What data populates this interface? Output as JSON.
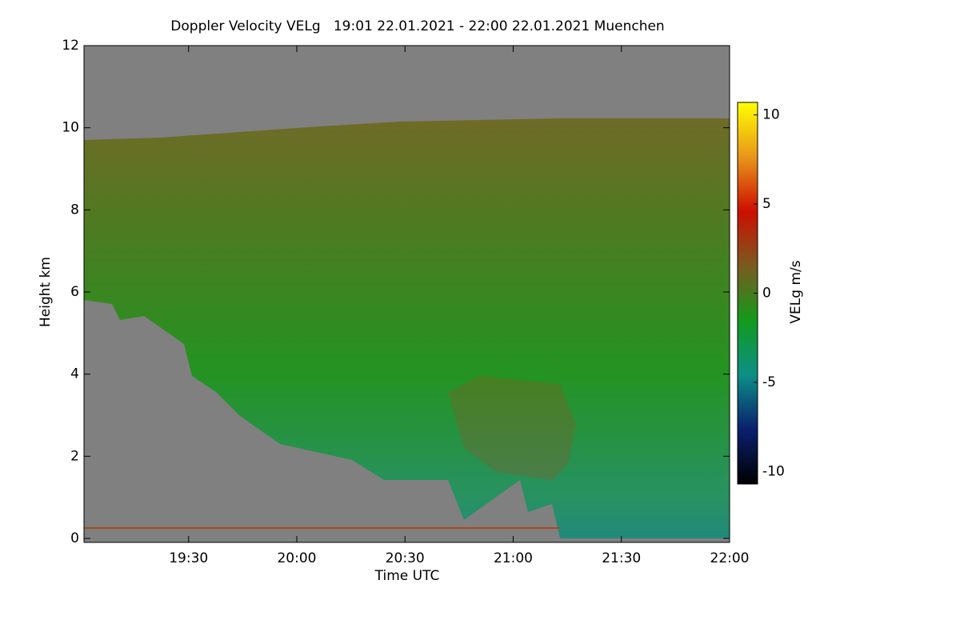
{
  "chart_data": {
    "type": "heatmap",
    "title": "Doppler Velocity VELg   19:01 22.01.2021 - 22:00 22.01.2021 Muenchen",
    "x_label": "Time UTC",
    "y_label": "Height km",
    "colorbar_label": "VELg m/s",
    "xlim": [
      19.0167,
      22.0
    ],
    "xticks": [
      {
        "value": 19.5,
        "label": "19:30"
      },
      {
        "value": 20.0,
        "label": "20:00"
      },
      {
        "value": 20.5,
        "label": "20:30"
      },
      {
        "value": 21.0,
        "label": "21:00"
      },
      {
        "value": 21.5,
        "label": "21:30"
      },
      {
        "value": 22.0,
        "label": "22:00"
      }
    ],
    "ylim": [
      0,
      12
    ],
    "yticks": [
      0,
      2,
      4,
      6,
      8,
      10,
      12
    ],
    "clim": [
      -10.7,
      10.7
    ],
    "cticks": [
      -10,
      -5,
      0,
      5,
      10
    ],
    "colormap": [
      "#000000",
      "#0a1f6e",
      "#0c8f86",
      "#139a1c",
      "#7a5a20",
      "#cc0f00",
      "#e8961a",
      "#ffff00"
    ],
    "background": "#808080"
  }
}
